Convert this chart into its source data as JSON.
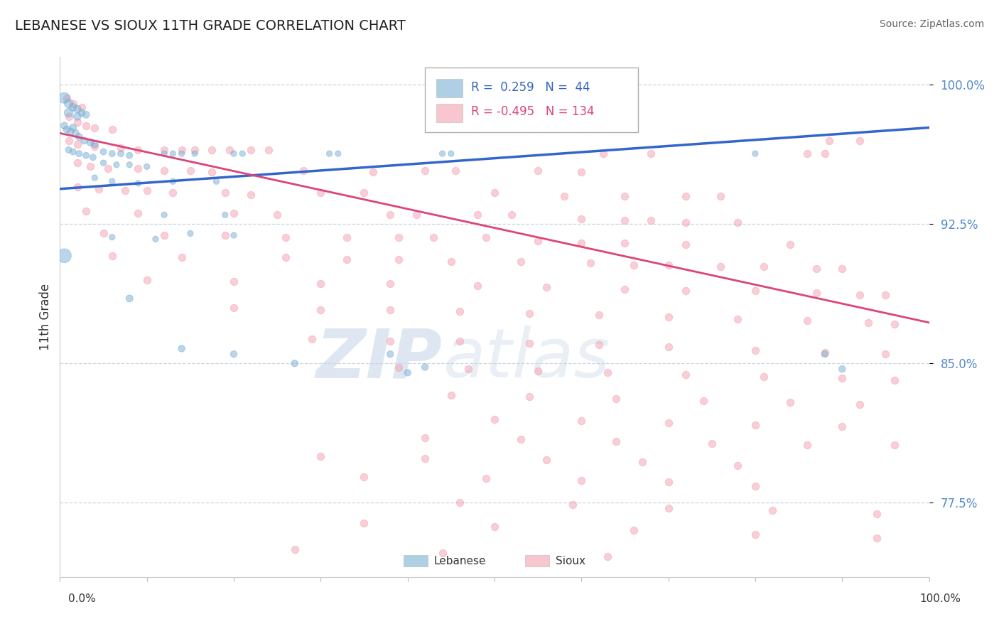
{
  "title": "LEBANESE VS SIOUX 11TH GRADE CORRELATION CHART",
  "source": "Source: ZipAtlas.com",
  "ylabel": "11th Grade",
  "ylabel_right_labels": [
    "100.0%",
    "92.5%",
    "85.0%",
    "77.5%"
  ],
  "ylabel_right_values": [
    1.0,
    0.925,
    0.85,
    0.775
  ],
  "legend_blue_r": "0.259",
  "legend_blue_n": "44",
  "legend_pink_r": "-0.495",
  "legend_pink_n": "134",
  "blue_color": "#7BAFD4",
  "pink_color": "#F4A0B0",
  "blue_line_color": "#3366CC",
  "pink_line_color": "#DD4477",
  "xlim": [
    0.0,
    1.0
  ],
  "ylim": [
    0.735,
    1.015
  ],
  "blue_line": [
    0.0,
    0.944,
    1.0,
    0.977
  ],
  "pink_line": [
    0.0,
    0.974,
    1.0,
    0.872
  ],
  "blue_points": [
    [
      0.005,
      0.993
    ],
    [
      0.01,
      0.99
    ],
    [
      0.01,
      0.985
    ],
    [
      0.015,
      0.988
    ],
    [
      0.02,
      0.987
    ],
    [
      0.02,
      0.983
    ],
    [
      0.025,
      0.985
    ],
    [
      0.03,
      0.984
    ],
    [
      0.005,
      0.978
    ],
    [
      0.008,
      0.976
    ],
    [
      0.012,
      0.975
    ],
    [
      0.015,
      0.977
    ],
    [
      0.018,
      0.974
    ],
    [
      0.022,
      0.972
    ],
    [
      0.028,
      0.97
    ],
    [
      0.035,
      0.969
    ],
    [
      0.04,
      0.968
    ],
    [
      0.01,
      0.965
    ],
    [
      0.015,
      0.964
    ],
    [
      0.022,
      0.963
    ],
    [
      0.03,
      0.962
    ],
    [
      0.038,
      0.961
    ],
    [
      0.05,
      0.964
    ],
    [
      0.06,
      0.963
    ],
    [
      0.07,
      0.963
    ],
    [
      0.08,
      0.962
    ],
    [
      0.05,
      0.958
    ],
    [
      0.065,
      0.957
    ],
    [
      0.08,
      0.957
    ],
    [
      0.1,
      0.956
    ],
    [
      0.12,
      0.963
    ],
    [
      0.13,
      0.963
    ],
    [
      0.14,
      0.963
    ],
    [
      0.155,
      0.963
    ],
    [
      0.2,
      0.963
    ],
    [
      0.21,
      0.963
    ],
    [
      0.31,
      0.963
    ],
    [
      0.32,
      0.963
    ],
    [
      0.44,
      0.963
    ],
    [
      0.45,
      0.963
    ],
    [
      0.8,
      0.963
    ],
    [
      0.04,
      0.95
    ],
    [
      0.06,
      0.948
    ],
    [
      0.09,
      0.947
    ],
    [
      0.13,
      0.948
    ],
    [
      0.18,
      0.948
    ],
    [
      0.12,
      0.93
    ],
    [
      0.19,
      0.93
    ],
    [
      0.06,
      0.918
    ],
    [
      0.11,
      0.917
    ],
    [
      0.15,
      0.92
    ],
    [
      0.2,
      0.919
    ],
    [
      0.005,
      0.908
    ],
    [
      0.08,
      0.885
    ],
    [
      0.14,
      0.858
    ],
    [
      0.2,
      0.855
    ],
    [
      0.27,
      0.85
    ],
    [
      0.38,
      0.855
    ],
    [
      0.4,
      0.845
    ],
    [
      0.42,
      0.848
    ],
    [
      0.88,
      0.855
    ],
    [
      0.9,
      0.847
    ]
  ],
  "blue_sizes_list": [
    120,
    80,
    80,
    60,
    60,
    60,
    50,
    50,
    50,
    50,
    50,
    50,
    50,
    50,
    50,
    50,
    50,
    40,
    40,
    40,
    40,
    40,
    40,
    40,
    40,
    40,
    35,
    35,
    35,
    35,
    35,
    35,
    35,
    35,
    35,
    35,
    35,
    35,
    35,
    35,
    35,
    35,
    35,
    35,
    35,
    35,
    35,
    35,
    35,
    35,
    35,
    35,
    200,
    50,
    45,
    45,
    45,
    45,
    45,
    45,
    45,
    45
  ],
  "pink_points": [
    [
      0.008,
      0.993
    ],
    [
      0.015,
      0.99
    ],
    [
      0.025,
      0.988
    ],
    [
      0.01,
      0.983
    ],
    [
      0.02,
      0.98
    ],
    [
      0.03,
      0.978
    ],
    [
      0.04,
      0.977
    ],
    [
      0.06,
      0.976
    ],
    [
      0.01,
      0.97
    ],
    [
      0.02,
      0.968
    ],
    [
      0.04,
      0.967
    ],
    [
      0.07,
      0.966
    ],
    [
      0.09,
      0.965
    ],
    [
      0.12,
      0.965
    ],
    [
      0.14,
      0.965
    ],
    [
      0.155,
      0.965
    ],
    [
      0.175,
      0.965
    ],
    [
      0.195,
      0.965
    ],
    [
      0.22,
      0.965
    ],
    [
      0.24,
      0.965
    ],
    [
      0.02,
      0.958
    ],
    [
      0.035,
      0.956
    ],
    [
      0.055,
      0.955
    ],
    [
      0.09,
      0.955
    ],
    [
      0.12,
      0.954
    ],
    [
      0.15,
      0.954
    ],
    [
      0.175,
      0.953
    ],
    [
      0.28,
      0.954
    ],
    [
      0.36,
      0.953
    ],
    [
      0.42,
      0.954
    ],
    [
      0.455,
      0.954
    ],
    [
      0.55,
      0.954
    ],
    [
      0.6,
      0.953
    ],
    [
      0.625,
      0.963
    ],
    [
      0.68,
      0.963
    ],
    [
      0.86,
      0.963
    ],
    [
      0.88,
      0.963
    ],
    [
      0.885,
      0.97
    ],
    [
      0.92,
      0.97
    ],
    [
      0.02,
      0.945
    ],
    [
      0.045,
      0.944
    ],
    [
      0.075,
      0.943
    ],
    [
      0.1,
      0.943
    ],
    [
      0.13,
      0.942
    ],
    [
      0.19,
      0.942
    ],
    [
      0.22,
      0.941
    ],
    [
      0.3,
      0.942
    ],
    [
      0.35,
      0.942
    ],
    [
      0.5,
      0.942
    ],
    [
      0.58,
      0.94
    ],
    [
      0.65,
      0.94
    ],
    [
      0.72,
      0.94
    ],
    [
      0.76,
      0.94
    ],
    [
      0.03,
      0.932
    ],
    [
      0.09,
      0.931
    ],
    [
      0.2,
      0.931
    ],
    [
      0.25,
      0.93
    ],
    [
      0.38,
      0.93
    ],
    [
      0.41,
      0.93
    ],
    [
      0.48,
      0.93
    ],
    [
      0.52,
      0.93
    ],
    [
      0.6,
      0.928
    ],
    [
      0.65,
      0.927
    ],
    [
      0.68,
      0.927
    ],
    [
      0.72,
      0.926
    ],
    [
      0.78,
      0.926
    ],
    [
      0.05,
      0.92
    ],
    [
      0.12,
      0.919
    ],
    [
      0.19,
      0.919
    ],
    [
      0.26,
      0.918
    ],
    [
      0.33,
      0.918
    ],
    [
      0.39,
      0.918
    ],
    [
      0.43,
      0.918
    ],
    [
      0.49,
      0.918
    ],
    [
      0.55,
      0.916
    ],
    [
      0.6,
      0.915
    ],
    [
      0.65,
      0.915
    ],
    [
      0.72,
      0.914
    ],
    [
      0.84,
      0.914
    ],
    [
      0.06,
      0.908
    ],
    [
      0.14,
      0.907
    ],
    [
      0.26,
      0.907
    ],
    [
      0.33,
      0.906
    ],
    [
      0.39,
      0.906
    ],
    [
      0.45,
      0.905
    ],
    [
      0.53,
      0.905
    ],
    [
      0.61,
      0.904
    ],
    [
      0.66,
      0.903
    ],
    [
      0.7,
      0.903
    ],
    [
      0.76,
      0.902
    ],
    [
      0.81,
      0.902
    ],
    [
      0.87,
      0.901
    ],
    [
      0.9,
      0.901
    ],
    [
      0.1,
      0.895
    ],
    [
      0.2,
      0.894
    ],
    [
      0.3,
      0.893
    ],
    [
      0.38,
      0.893
    ],
    [
      0.48,
      0.892
    ],
    [
      0.56,
      0.891
    ],
    [
      0.65,
      0.89
    ],
    [
      0.72,
      0.889
    ],
    [
      0.8,
      0.889
    ],
    [
      0.87,
      0.888
    ],
    [
      0.92,
      0.887
    ],
    [
      0.95,
      0.887
    ],
    [
      0.2,
      0.88
    ],
    [
      0.3,
      0.879
    ],
    [
      0.38,
      0.879
    ],
    [
      0.46,
      0.878
    ],
    [
      0.54,
      0.877
    ],
    [
      0.62,
      0.876
    ],
    [
      0.7,
      0.875
    ],
    [
      0.78,
      0.874
    ],
    [
      0.86,
      0.873
    ],
    [
      0.93,
      0.872
    ],
    [
      0.96,
      0.871
    ],
    [
      0.29,
      0.863
    ],
    [
      0.38,
      0.862
    ],
    [
      0.46,
      0.862
    ],
    [
      0.54,
      0.861
    ],
    [
      0.62,
      0.86
    ],
    [
      0.7,
      0.859
    ],
    [
      0.8,
      0.857
    ],
    [
      0.88,
      0.856
    ],
    [
      0.95,
      0.855
    ],
    [
      0.39,
      0.848
    ],
    [
      0.47,
      0.847
    ],
    [
      0.55,
      0.846
    ],
    [
      0.63,
      0.845
    ],
    [
      0.72,
      0.844
    ],
    [
      0.81,
      0.843
    ],
    [
      0.9,
      0.842
    ],
    [
      0.96,
      0.841
    ],
    [
      0.45,
      0.833
    ],
    [
      0.54,
      0.832
    ],
    [
      0.64,
      0.831
    ],
    [
      0.74,
      0.83
    ],
    [
      0.84,
      0.829
    ],
    [
      0.92,
      0.828
    ],
    [
      0.5,
      0.82
    ],
    [
      0.6,
      0.819
    ],
    [
      0.7,
      0.818
    ],
    [
      0.8,
      0.817
    ],
    [
      0.9,
      0.816
    ],
    [
      0.42,
      0.81
    ],
    [
      0.53,
      0.809
    ],
    [
      0.64,
      0.808
    ],
    [
      0.75,
      0.807
    ],
    [
      0.86,
      0.806
    ],
    [
      0.96,
      0.806
    ],
    [
      0.3,
      0.8
    ],
    [
      0.42,
      0.799
    ],
    [
      0.56,
      0.798
    ],
    [
      0.67,
      0.797
    ],
    [
      0.78,
      0.795
    ],
    [
      0.35,
      0.789
    ],
    [
      0.49,
      0.788
    ],
    [
      0.6,
      0.787
    ],
    [
      0.7,
      0.786
    ],
    [
      0.8,
      0.784
    ],
    [
      0.46,
      0.775
    ],
    [
      0.59,
      0.774
    ],
    [
      0.7,
      0.772
    ],
    [
      0.82,
      0.771
    ],
    [
      0.94,
      0.769
    ],
    [
      0.35,
      0.764
    ],
    [
      0.5,
      0.762
    ],
    [
      0.66,
      0.76
    ],
    [
      0.8,
      0.758
    ],
    [
      0.94,
      0.756
    ],
    [
      0.27,
      0.75
    ],
    [
      0.44,
      0.748
    ],
    [
      0.63,
      0.746
    ]
  ]
}
